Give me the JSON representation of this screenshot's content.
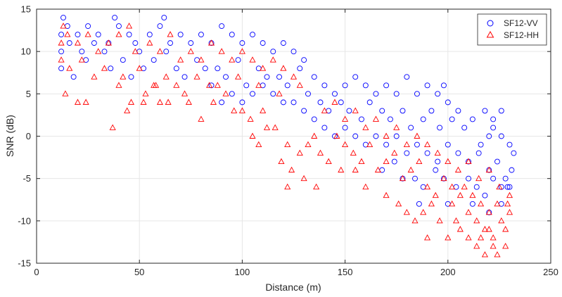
{
  "chart_data": {
    "type": "scatter",
    "title": "",
    "xlabel": "Distance (m)",
    "ylabel": "SNR (dB)",
    "xlim": [
      0,
      250
    ],
    "ylim": [
      -15,
      15
    ],
    "xticks": [
      0,
      50,
      100,
      150,
      200,
      250
    ],
    "yticks": [
      -15,
      -10,
      -5,
      0,
      5,
      10,
      15
    ],
    "grid": true,
    "legend_position": "top-right",
    "series": [
      {
        "name": "SF12-VV",
        "marker": "circle",
        "color": "#0000ff",
        "points": [
          [
            13,
            14
          ],
          [
            38,
            14
          ],
          [
            62,
            14
          ],
          [
            12,
            12
          ],
          [
            15,
            13
          ],
          [
            20,
            12
          ],
          [
            25,
            13
          ],
          [
            30,
            12
          ],
          [
            35,
            11
          ],
          [
            40,
            13
          ],
          [
            45,
            12
          ],
          [
            48,
            11
          ],
          [
            55,
            12
          ],
          [
            60,
            13
          ],
          [
            65,
            11
          ],
          [
            70,
            12
          ],
          [
            75,
            11
          ],
          [
            80,
            12
          ],
          [
            85,
            11
          ],
          [
            90,
            13
          ],
          [
            95,
            12
          ],
          [
            100,
            11
          ],
          [
            105,
            12
          ],
          [
            110,
            11
          ],
          [
            115,
            10
          ],
          [
            120,
            11
          ],
          [
            125,
            10
          ],
          [
            130,
            9
          ],
          [
            12,
            10
          ],
          [
            16,
            11
          ],
          [
            22,
            10
          ],
          [
            28,
            11
          ],
          [
            33,
            10
          ],
          [
            42,
            9
          ],
          [
            50,
            10
          ],
          [
            57,
            9
          ],
          [
            63,
            10
          ],
          [
            68,
            8
          ],
          [
            78,
            9
          ],
          [
            88,
            8
          ],
          [
            98,
            9
          ],
          [
            108,
            8
          ],
          [
            118,
            7
          ],
          [
            128,
            8
          ],
          [
            12,
            8
          ],
          [
            18,
            7
          ],
          [
            24,
            9
          ],
          [
            36,
            8
          ],
          [
            46,
            7
          ],
          [
            52,
            8
          ],
          [
            72,
            7
          ],
          [
            82,
            8
          ],
          [
            92,
            7
          ],
          [
            102,
            6
          ],
          [
            112,
            7
          ],
          [
            122,
            6
          ],
          [
            135,
            7
          ],
          [
            140,
            6
          ],
          [
            145,
            5
          ],
          [
            150,
            6
          ],
          [
            155,
            7
          ],
          [
            160,
            6
          ],
          [
            165,
            5
          ],
          [
            170,
            6
          ],
          [
            175,
            5
          ],
          [
            180,
            7
          ],
          [
            185,
            5
          ],
          [
            190,
            6
          ],
          [
            195,
            5
          ],
          [
            198,
            6
          ],
          [
            200,
            4
          ],
          [
            205,
            3
          ],
          [
            132,
            5
          ],
          [
            138,
            4
          ],
          [
            142,
            3
          ],
          [
            148,
            4
          ],
          [
            152,
            3
          ],
          [
            158,
            2
          ],
          [
            162,
            4
          ],
          [
            168,
            3
          ],
          [
            172,
            2
          ],
          [
            178,
            3
          ],
          [
            182,
            1
          ],
          [
            188,
            2
          ],
          [
            192,
            3
          ],
          [
            196,
            1
          ],
          [
            202,
            2
          ],
          [
            208,
            1
          ],
          [
            212,
            2
          ],
          [
            218,
            3
          ],
          [
            222,
            1
          ],
          [
            226,
            0
          ],
          [
            230,
            -1
          ],
          [
            125,
            4
          ],
          [
            130,
            3
          ],
          [
            135,
            2
          ],
          [
            140,
            1
          ],
          [
            145,
            0
          ],
          [
            150,
            1
          ],
          [
            155,
            0
          ],
          [
            160,
            -1
          ],
          [
            165,
            0
          ],
          [
            170,
            -1
          ],
          [
            175,
            0
          ],
          [
            180,
            -2
          ],
          [
            185,
            -1
          ],
          [
            190,
            -2
          ],
          [
            195,
            -3
          ],
          [
            200,
            -1
          ],
          [
            205,
            -2
          ],
          [
            210,
            -3
          ],
          [
            215,
            -2
          ],
          [
            220,
            -4
          ],
          [
            224,
            -3
          ],
          [
            228,
            -5
          ],
          [
            231,
            -4
          ],
          [
            184,
            -5
          ],
          [
            188,
            -6
          ],
          [
            194,
            -4
          ],
          [
            198,
            -5
          ],
          [
            204,
            -6
          ],
          [
            210,
            -5
          ],
          [
            214,
            -6
          ],
          [
            218,
            -7
          ],
          [
            222,
            -5
          ],
          [
            226,
            -6
          ],
          [
            230,
            -6
          ],
          [
            168,
            -4
          ],
          [
            174,
            -3
          ],
          [
            178,
            -5
          ],
          [
            186,
            -8
          ],
          [
            200,
            -8
          ],
          [
            212,
            -8
          ],
          [
            220,
            -9
          ],
          [
            226,
            -8
          ],
          [
            100,
            4
          ],
          [
            105,
            5
          ],
          [
            110,
            6
          ],
          [
            115,
            5
          ],
          [
            120,
            4
          ],
          [
            95,
            5
          ],
          [
            90,
            4
          ],
          [
            85,
            6
          ],
          [
            222,
            2
          ],
          [
            226,
            3
          ],
          [
            220,
            0
          ],
          [
            216,
            -1
          ],
          [
            232,
            -2
          ],
          [
            229,
            -6
          ]
        ]
      },
      {
        "name": "SF12-HH",
        "marker": "triangle",
        "color": "#ff0000",
        "points": [
          [
            13,
            13
          ],
          [
            45,
            13
          ],
          [
            12,
            11
          ],
          [
            15,
            12
          ],
          [
            20,
            11
          ],
          [
            25,
            12
          ],
          [
            30,
            10
          ],
          [
            35,
            11
          ],
          [
            40,
            12
          ],
          [
            48,
            10
          ],
          [
            55,
            11
          ],
          [
            60,
            10
          ],
          [
            65,
            12
          ],
          [
            70,
            9
          ],
          [
            75,
            10
          ],
          [
            80,
            9
          ],
          [
            85,
            11
          ],
          [
            90,
            10
          ],
          [
            95,
            9
          ],
          [
            100,
            10
          ],
          [
            105,
            9
          ],
          [
            110,
            8
          ],
          [
            115,
            9
          ],
          [
            120,
            8
          ],
          [
            125,
            7
          ],
          [
            12,
            9
          ],
          [
            16,
            8
          ],
          [
            22,
            9
          ],
          [
            28,
            7
          ],
          [
            33,
            8
          ],
          [
            42,
            7
          ],
          [
            50,
            8
          ],
          [
            57,
            6
          ],
          [
            63,
            7
          ],
          [
            68,
            6
          ],
          [
            78,
            7
          ],
          [
            88,
            6
          ],
          [
            98,
            7
          ],
          [
            108,
            6
          ],
          [
            118,
            5
          ],
          [
            128,
            6
          ],
          [
            14,
            5
          ],
          [
            20,
            4
          ],
          [
            24,
            4
          ],
          [
            37,
            1
          ],
          [
            44,
            3
          ],
          [
            46,
            4
          ],
          [
            53,
            5
          ],
          [
            60,
            4
          ],
          [
            74,
            4
          ],
          [
            80,
            2
          ],
          [
            86,
            4
          ],
          [
            96,
            3
          ],
          [
            104,
            2
          ],
          [
            110,
            3
          ],
          [
            116,
            1
          ],
          [
            119,
            -3
          ],
          [
            122,
            -1
          ],
          [
            124,
            -4
          ],
          [
            122,
            -6
          ],
          [
            128,
            -2
          ],
          [
            132,
            -1
          ],
          [
            135,
            0
          ],
          [
            138,
            -2
          ],
          [
            142,
            -3
          ],
          [
            146,
            0
          ],
          [
            150,
            -1
          ],
          [
            154,
            -2
          ],
          [
            158,
            -3
          ],
          [
            162,
            -1
          ],
          [
            166,
            -4
          ],
          [
            170,
            -3
          ],
          [
            174,
            -2
          ],
          [
            178,
            -5
          ],
          [
            182,
            -4
          ],
          [
            186,
            -3
          ],
          [
            190,
            -6
          ],
          [
            194,
            -7
          ],
          [
            198,
            -5
          ],
          [
            202,
            -8
          ],
          [
            206,
            -7
          ],
          [
            210,
            -9
          ],
          [
            214,
            -10
          ],
          [
            218,
            -11
          ],
          [
            222,
            -12
          ],
          [
            226,
            -10
          ],
          [
            230,
            -9
          ],
          [
            190,
            -12
          ],
          [
            200,
            -12
          ],
          [
            206,
            -11
          ],
          [
            214,
            -13
          ],
          [
            218,
            -14
          ],
          [
            222,
            -13
          ],
          [
            224,
            -14
          ],
          [
            228,
            -13
          ],
          [
            184,
            -10
          ],
          [
            188,
            -9
          ],
          [
            196,
            -10
          ],
          [
            204,
            -10
          ],
          [
            210,
            -12
          ],
          [
            216,
            -12
          ],
          [
            220,
            -11
          ],
          [
            228,
            -11
          ],
          [
            170,
            -7
          ],
          [
            176,
            -8
          ],
          [
            180,
            -9
          ],
          [
            192,
            -8
          ],
          [
            202,
            -6
          ],
          [
            208,
            -6
          ],
          [
            212,
            -7
          ],
          [
            216,
            -8
          ],
          [
            220,
            -9
          ],
          [
            224,
            -8
          ],
          [
            229,
            -8
          ],
          [
            140,
            3
          ],
          [
            145,
            4
          ],
          [
            150,
            2
          ],
          [
            155,
            3
          ],
          [
            160,
            1
          ],
          [
            165,
            2
          ],
          [
            170,
            0
          ],
          [
            175,
            1
          ],
          [
            180,
            -1
          ],
          [
            185,
            0
          ],
          [
            190,
            -1
          ],
          [
            195,
            -2
          ],
          [
            200,
            -3
          ],
          [
            205,
            -4
          ],
          [
            210,
            -3
          ],
          [
            215,
            -5
          ],
          [
            220,
            -4
          ],
          [
            225,
            -6
          ],
          [
            230,
            -7
          ],
          [
            160,
            -6
          ],
          [
            155,
            -4
          ],
          [
            148,
            -4
          ],
          [
            136,
            -6
          ],
          [
            130,
            -5
          ],
          [
            105,
            0
          ],
          [
            108,
            -1
          ],
          [
            112,
            1
          ],
          [
            100,
            3
          ],
          [
            92,
            5
          ],
          [
            84,
            6
          ],
          [
            72,
            5
          ],
          [
            64,
            4
          ],
          [
            58,
            6
          ],
          [
            52,
            4
          ],
          [
            40,
            6
          ]
        ]
      }
    ]
  }
}
